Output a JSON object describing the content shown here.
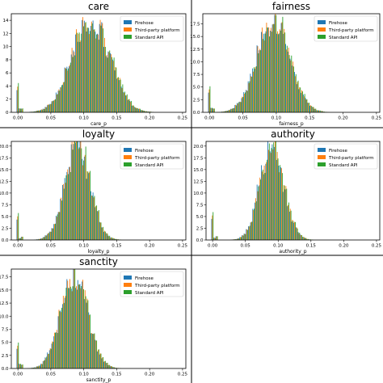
{
  "colors": {
    "firehose": "#1f77b4",
    "third_party": "#ff7f0e",
    "standard_api": "#2ca02c",
    "panel_border": "#000000",
    "legend_border": "#cccccc"
  },
  "chart_data": [
    {
      "type": "bar",
      "title": "care",
      "xlabel": "care_p",
      "ylabel": "",
      "xlim": [
        -0.01,
        0.255
      ],
      "ylim": [
        0,
        15
      ],
      "xticks": [
        "0.00",
        "0.05",
        "0.10",
        "0.15",
        "0.20",
        "0.25"
      ],
      "yticks": [
        "0",
        "2",
        "4",
        "6",
        "8",
        "10",
        "12",
        "14"
      ],
      "legend": {
        "placement": "top-right",
        "entries": [
          "Firehose",
          "Third-party platform",
          "Standard API"
        ]
      },
      "peak_x": 0.11,
      "peak_y": 14.5,
      "spread": 0.028,
      "zero_bar": 4.5,
      "series": [
        {
          "name": "Firehose"
        },
        {
          "name": "Third-party platform"
        },
        {
          "name": "Standard API"
        }
      ]
    },
    {
      "type": "bar",
      "title": "fairness",
      "xlabel": "fairness_p",
      "ylabel": "",
      "xlim": [
        -0.01,
        0.255
      ],
      "ylim": [
        0,
        19.5
      ],
      "xticks": [
        "0.00",
        "0.05",
        "0.10",
        "0.15",
        "0.20",
        "0.25"
      ],
      "yticks": [
        "0.0",
        "2.5",
        "5.0",
        "7.5",
        "10.0",
        "12.5",
        "15.0",
        "17.5"
      ],
      "legend": {
        "placement": "top-right",
        "entries": [
          "Firehose",
          "Third-party platform",
          "Standard API"
        ]
      },
      "peak_x": 0.095,
      "peak_y": 19,
      "spread": 0.024,
      "zero_bar": 5.2,
      "series": [
        {
          "name": "Firehose"
        },
        {
          "name": "Third-party platform"
        },
        {
          "name": "Standard API"
        }
      ]
    },
    {
      "type": "bar",
      "title": "loyalty",
      "xlabel": "loyalty_p",
      "ylabel": "",
      "xlim": [
        -0.01,
        0.255
      ],
      "ylim": [
        0,
        21
      ],
      "xticks": [
        "0.00",
        "0.05",
        "0.10",
        "0.15",
        "0.20",
        "0.25"
      ],
      "yticks": [
        "0.0",
        "2.5",
        "5.0",
        "7.5",
        "10.0",
        "12.5",
        "15.0",
        "17.5",
        "20.0"
      ],
      "legend": {
        "placement": "top-right",
        "entries": [
          "Firehose",
          "Third-party platform",
          "Standard API"
        ]
      },
      "peak_x": 0.09,
      "peak_y": 20.5,
      "spread": 0.019,
      "zero_bar": 5.8,
      "series": [
        {
          "name": "Firehose"
        },
        {
          "name": "Third-party platform"
        },
        {
          "name": "Standard API"
        }
      ]
    },
    {
      "type": "bar",
      "title": "authority",
      "xlabel": "authority_p",
      "ylabel": "",
      "xlim": [
        -0.01,
        0.255
      ],
      "ylim": [
        0,
        21
      ],
      "xticks": [
        "0.00",
        "0.05",
        "0.10",
        "0.15",
        "0.20",
        "0.25"
      ],
      "yticks": [
        "0.0",
        "2.5",
        "5.0",
        "7.5",
        "10.0",
        "12.5",
        "15.0",
        "17.5",
        "20.0"
      ],
      "legend": {
        "placement": "top-right",
        "entries": [
          "Firehose",
          "Third-party platform",
          "Standard API"
        ]
      },
      "peak_x": 0.09,
      "peak_y": 20,
      "spread": 0.018,
      "zero_bar": 6,
      "series": [
        {
          "name": "Firehose"
        },
        {
          "name": "Third-party platform"
        },
        {
          "name": "Standard API"
        }
      ]
    },
    {
      "type": "bar",
      "title": "sanctity",
      "xlabel": "sanctity_p",
      "ylabel": "",
      "xlim": [
        -0.01,
        0.255
      ],
      "ylim": [
        0,
        19
      ],
      "xticks": [
        "0.00",
        "0.05",
        "0.10",
        "0.15",
        "0.20",
        "0.25"
      ],
      "yticks": [
        "0.0",
        "2.5",
        "5.0",
        "7.5",
        "10.0",
        "12.5",
        "15.0",
        "17.5"
      ],
      "legend": {
        "placement": "top-right",
        "entries": [
          "Firehose",
          "Third-party platform",
          "Standard API"
        ]
      },
      "peak_x": 0.085,
      "peak_y": 18.5,
      "spread": 0.02,
      "zero_bar": 5,
      "series": [
        {
          "name": "Firehose"
        },
        {
          "name": "Third-party platform"
        },
        {
          "name": "Standard API"
        }
      ]
    }
  ]
}
